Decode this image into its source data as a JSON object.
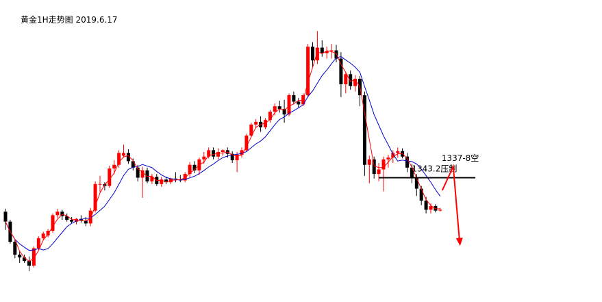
{
  "chart_data": {
    "type": "candlestick",
    "title": "黄金1H走势图 2019.6.17",
    "colors": {
      "up": "#ff0000",
      "down": "#000000",
      "ma_fast": "#ff0000",
      "ma_slow": "#0000cc",
      "arrow": "#ff0000",
      "resistance_line": "#000000"
    },
    "ylim": [
      1330,
      1362
    ],
    "candles": [
      [
        1339.5,
        1339.8,
        1337.5,
        1338.4
      ],
      [
        1338.4,
        1338.6,
        1336.0,
        1336.2
      ],
      [
        1336.2,
        1336.4,
        1334.4,
        1334.8
      ],
      [
        1334.8,
        1335.2,
        1333.9,
        1334.5
      ],
      [
        1334.5,
        1334.8,
        1333.9,
        1334.1
      ],
      [
        1334.1,
        1334.6,
        1333.0,
        1333.6
      ],
      [
        1333.6,
        1335.7,
        1333.4,
        1335.5
      ],
      [
        1335.5,
        1336.8,
        1335.3,
        1336.6
      ],
      [
        1336.6,
        1337.3,
        1336.4,
        1337.1
      ],
      [
        1336.9,
        1337.6,
        1336.7,
        1337.4
      ],
      [
        1337.4,
        1339.3,
        1337.2,
        1339.1
      ],
      [
        1339.1,
        1339.8,
        1338.8,
        1339.5
      ],
      [
        1339.5,
        1339.7,
        1338.6,
        1339.0
      ],
      [
        1339.0,
        1339.3,
        1338.4,
        1338.6
      ],
      [
        1338.6,
        1338.9,
        1338.2,
        1338.4
      ],
      [
        1338.4,
        1338.8,
        1338.1,
        1338.7
      ],
      [
        1338.7,
        1339.1,
        1338.3,
        1338.5
      ],
      [
        1338.5,
        1338.9,
        1337.9,
        1338.2
      ],
      [
        1338.2,
        1339.9,
        1337.9,
        1339.6
      ],
      [
        1339.6,
        1342.8,
        1339.4,
        1342.5
      ],
      [
        1342.5,
        1343.4,
        1341.6,
        1342.5
      ],
      [
        1342.5,
        1342.7,
        1341.8,
        1342.3
      ],
      [
        1342.3,
        1344.5,
        1342.1,
        1344.2
      ],
      [
        1344.2,
        1345.1,
        1343.6,
        1344.6
      ],
      [
        1344.6,
        1346.2,
        1344.3,
        1345.9
      ],
      [
        1345.6,
        1346.8,
        1345.4,
        1345.9
      ],
      [
        1345.9,
        1346.3,
        1344.7,
        1345.0
      ],
      [
        1345.0,
        1345.3,
        1344.0,
        1344.3
      ],
      [
        1344.3,
        1344.6,
        1342.8,
        1343.2
      ],
      [
        1343.2,
        1344.4,
        1341.0,
        1344.0
      ],
      [
        1344.0,
        1344.3,
        1342.6,
        1342.8
      ],
      [
        1342.8,
        1343.6,
        1342.5,
        1343.3
      ],
      [
        1343.3,
        1343.6,
        1342.3,
        1342.5
      ],
      [
        1342.5,
        1343.3,
        1342.2,
        1343.0
      ],
      [
        1343.0,
        1343.3,
        1342.5,
        1342.7
      ],
      [
        1342.7,
        1343.2,
        1342.5,
        1343.1
      ],
      [
        1343.1,
        1343.8,
        1342.7,
        1343.0
      ],
      [
        1343.0,
        1343.5,
        1342.7,
        1342.9
      ],
      [
        1342.9,
        1343.8,
        1342.7,
        1343.6
      ],
      [
        1343.6,
        1344.9,
        1343.3,
        1344.6
      ],
      [
        1344.6,
        1345.0,
        1343.7,
        1344.0
      ],
      [
        1344.0,
        1345.4,
        1343.5,
        1345.2
      ],
      [
        1345.2,
        1346.0,
        1344.7,
        1345.5
      ],
      [
        1345.5,
        1346.5,
        1345.3,
        1346.2
      ],
      [
        1346.2,
        1346.5,
        1345.2,
        1345.5
      ],
      [
        1345.5,
        1346.4,
        1345.2,
        1346.0
      ],
      [
        1346.0,
        1346.3,
        1345.6,
        1346.2
      ],
      [
        1346.2,
        1346.5,
        1345.4,
        1345.8
      ],
      [
        1345.8,
        1346.1,
        1344.8,
        1345.1
      ],
      [
        1345.1,
        1346.0,
        1343.8,
        1345.7
      ],
      [
        1345.7,
        1346.5,
        1345.4,
        1346.2
      ],
      [
        1346.2,
        1348.0,
        1346.0,
        1347.8
      ],
      [
        1347.8,
        1349.2,
        1347.6,
        1349.0
      ],
      [
        1349.0,
        1349.6,
        1348.6,
        1349.3
      ],
      [
        1349.3,
        1349.9,
        1348.2,
        1348.7
      ],
      [
        1348.7,
        1349.7,
        1348.5,
        1349.5
      ],
      [
        1349.5,
        1350.6,
        1349.2,
        1350.4
      ],
      [
        1350.4,
        1351.3,
        1350.0,
        1351.0
      ],
      [
        1351.0,
        1351.6,
        1350.3,
        1350.7
      ],
      [
        1350.7,
        1351.7,
        1349.2,
        1350.1
      ],
      [
        1350.1,
        1352.4,
        1349.9,
        1352.2
      ],
      [
        1352.2,
        1352.6,
        1351.2,
        1351.5
      ],
      [
        1351.5,
        1351.9,
        1350.9,
        1351.2
      ],
      [
        1351.2,
        1352.4,
        1351.0,
        1352.2
      ],
      [
        1352.2,
        1357.8,
        1352.0,
        1357.5
      ],
      [
        1357.5,
        1358.0,
        1355.3,
        1356.0
      ],
      [
        1356.0,
        1359.2,
        1355.6,
        1357.4
      ],
      [
        1357.4,
        1358.2,
        1356.4,
        1356.8
      ],
      [
        1356.8,
        1357.5,
        1356.2,
        1357.0
      ],
      [
        1357.0,
        1357.8,
        1356.2,
        1357.1
      ],
      [
        1357.1,
        1357.7,
        1355.8,
        1356.2
      ],
      [
        1356.2,
        1356.9,
        1352.0,
        1353.4
      ],
      [
        1353.4,
        1354.7,
        1352.4,
        1354.5
      ],
      [
        1354.5,
        1354.9,
        1352.8,
        1353.2
      ],
      [
        1353.2,
        1354.4,
        1352.6,
        1354.0
      ],
      [
        1354.0,
        1354.3,
        1351.0,
        1352.2
      ],
      [
        1352.2,
        1352.6,
        1343.4,
        1344.6
      ],
      [
        1344.6,
        1345.6,
        1342.6,
        1345.2
      ],
      [
        1345.2,
        1345.5,
        1343.1,
        1343.6
      ],
      [
        1343.6,
        1344.8,
        1342.8,
        1344.1
      ],
      [
        1344.1,
        1345.5,
        1341.7,
        1345.2
      ],
      [
        1345.2,
        1345.7,
        1344.3,
        1345.4
      ],
      [
        1345.4,
        1346.2,
        1344.8,
        1345.9
      ],
      [
        1345.9,
        1346.5,
        1345.4,
        1346.1
      ],
      [
        1346.1,
        1346.4,
        1345.3,
        1345.5
      ],
      [
        1345.5,
        1345.9,
        1343.8,
        1344.3
      ],
      [
        1344.3,
        1344.7,
        1342.6,
        1343.2
      ],
      [
        1343.2,
        1343.6,
        1341.2,
        1342.0
      ],
      [
        1342.0,
        1342.3,
        1340.2,
        1340.7
      ],
      [
        1340.7,
        1341.1,
        1339.3,
        1339.7
      ],
      [
        1339.7,
        1340.4,
        1339.3,
        1340.1
      ],
      [
        1340.1,
        1340.3,
        1339.4,
        1339.6
      ],
      [
        1339.6,
        1339.9,
        1339.5,
        1339.7
      ]
    ],
    "annotations": [
      {
        "text": "1343.2压制",
        "level": 1343.2
      },
      {
        "text": "1337-8空"
      }
    ]
  }
}
